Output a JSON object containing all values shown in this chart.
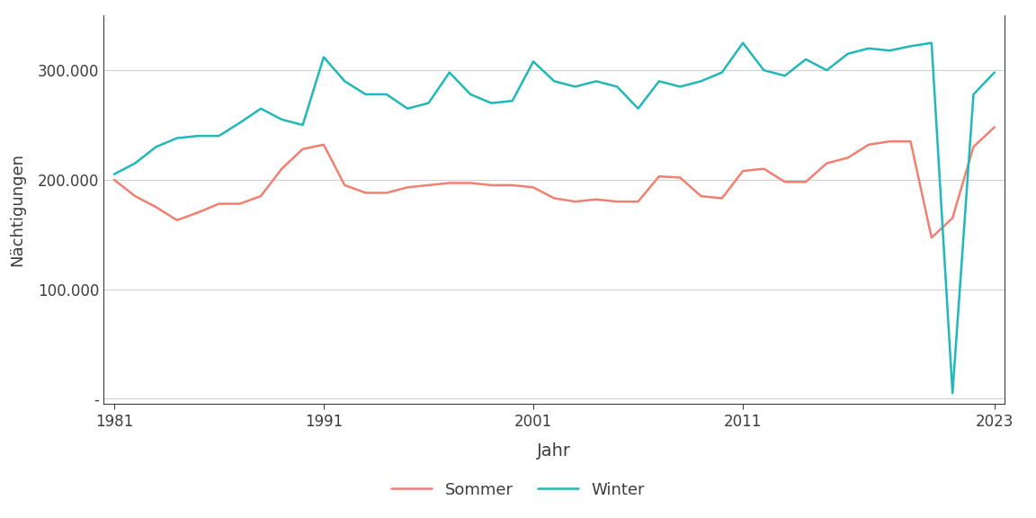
{
  "years": [
    1981,
    1982,
    1983,
    1984,
    1985,
    1986,
    1987,
    1988,
    1989,
    1990,
    1991,
    1992,
    1993,
    1994,
    1995,
    1996,
    1997,
    1998,
    1999,
    2000,
    2001,
    2002,
    2003,
    2004,
    2005,
    2006,
    2007,
    2008,
    2009,
    2010,
    2011,
    2012,
    2013,
    2014,
    2015,
    2016,
    2017,
    2018,
    2019,
    2020,
    2021,
    2022,
    2023
  ],
  "sommer": [
    200000,
    185000,
    175000,
    163000,
    170000,
    178000,
    178000,
    185000,
    210000,
    228000,
    232000,
    195000,
    188000,
    188000,
    193000,
    195000,
    197000,
    197000,
    195000,
    195000,
    193000,
    183000,
    180000,
    182000,
    180000,
    180000,
    203000,
    202000,
    185000,
    183000,
    208000,
    210000,
    198000,
    198000,
    215000,
    220000,
    232000,
    235000,
    235000,
    147000,
    165000,
    230000,
    248000
  ],
  "winter": [
    205000,
    215000,
    230000,
    238000,
    240000,
    240000,
    252000,
    265000,
    255000,
    250000,
    312000,
    290000,
    278000,
    278000,
    265000,
    270000,
    298000,
    278000,
    270000,
    272000,
    308000,
    290000,
    285000,
    290000,
    285000,
    265000,
    290000,
    285000,
    290000,
    298000,
    325000,
    300000,
    295000,
    310000,
    300000,
    315000,
    320000,
    318000,
    322000,
    325000,
    5000,
    278000,
    298000
  ],
  "sommer_color": "#F08070",
  "winter_color": "#20B8B8",
  "xlabel": "Jahr",
  "ylabel": "Nächtigungen",
  "xlim": [
    1980.5,
    2023.5
  ],
  "ylim": [
    -5000,
    350000
  ],
  "yticks": [
    0,
    100000,
    200000,
    300000
  ],
  "ytick_labels": [
    "-",
    "100.000",
    "200.000",
    "300.000"
  ],
  "xticks": [
    1981,
    1991,
    2001,
    2011,
    2023
  ],
  "legend_labels": [
    "Sommer",
    "Winter"
  ],
  "background_color": "#ffffff",
  "grid_color": "#d0d0d0",
  "text_color": "#3d3d3d",
  "spine_color": "#3d3d3d"
}
